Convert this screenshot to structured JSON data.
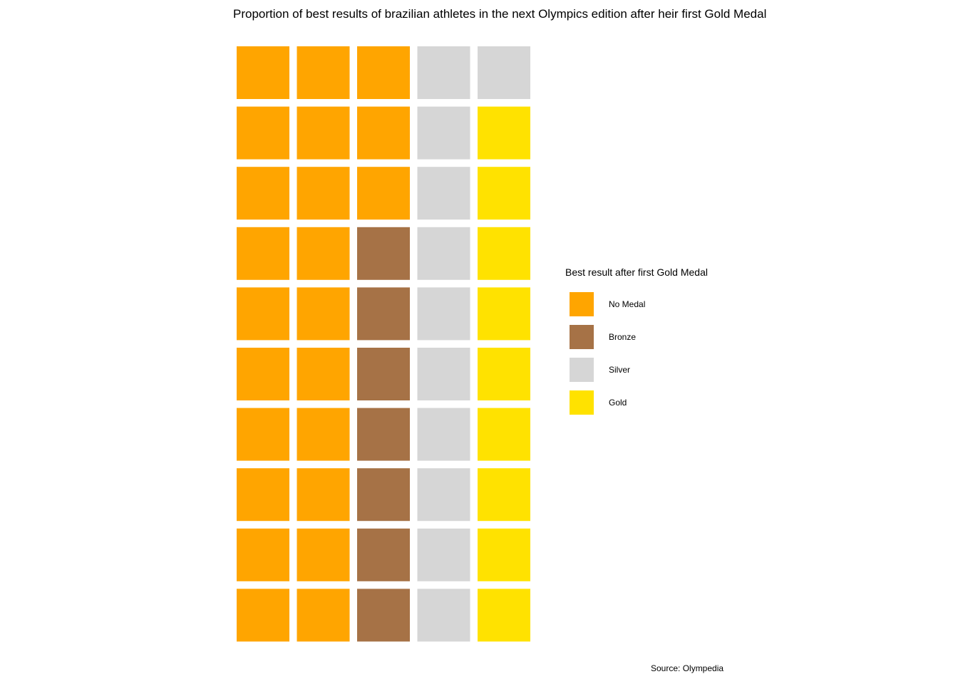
{
  "chart_data": {
    "type": "waffle",
    "title": "Proportion of best results of brazilian athletes in the next Olympics edition after heir first Gold Medal",
    "legend": {
      "title": "Best result after first Gold Medal",
      "placement": "right",
      "entries": [
        {
          "label": "No Medal",
          "color": "#FFA500"
        },
        {
          "label": "Bronze",
          "color": "#A67246"
        },
        {
          "label": "Silver",
          "color": "#D6D6D6"
        },
        {
          "label": "Gold",
          "color": "#FFE200"
        }
      ]
    },
    "grid": {
      "columns": 5,
      "rows": 10,
      "fill_order": "column-major, top to bottom"
    },
    "categories": [
      "No Medal",
      "Bronze",
      "Silver",
      "Gold"
    ],
    "values": [
      23,
      7,
      11,
      9
    ],
    "caption": "Source: Olympedia"
  }
}
